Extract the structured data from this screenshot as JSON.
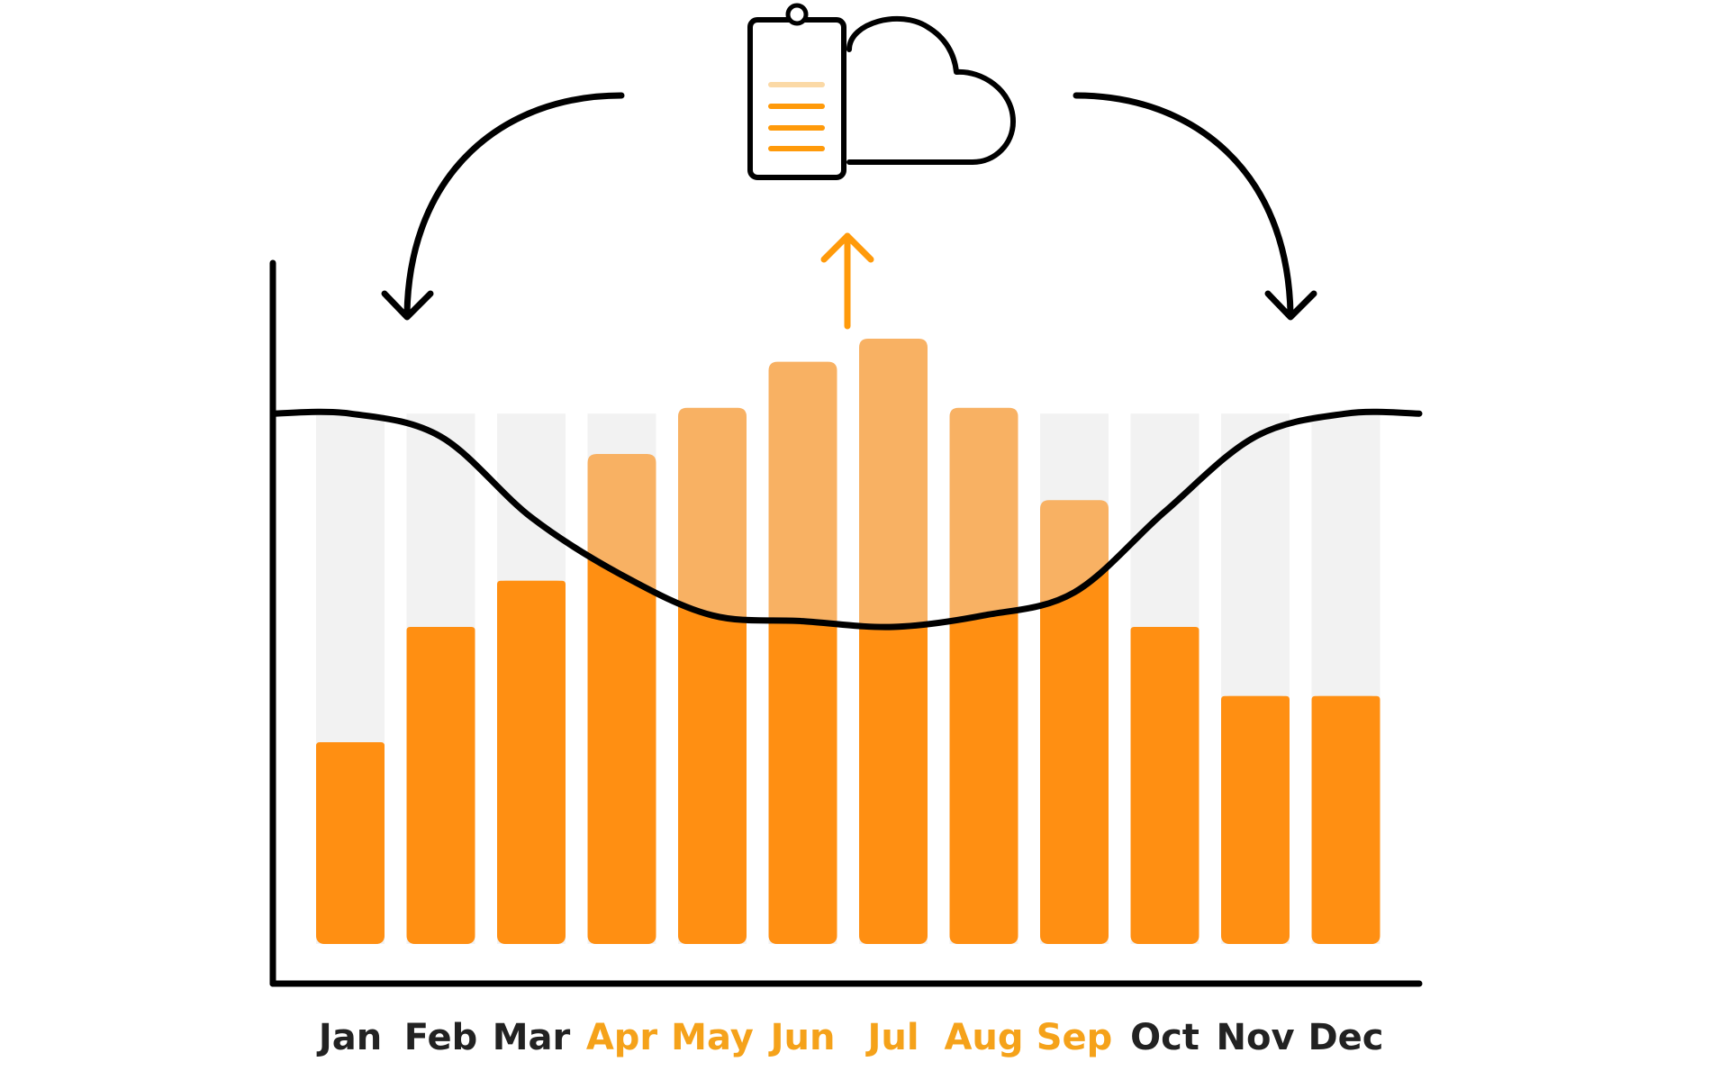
{
  "colors": {
    "bar_fill": "#ff8f12",
    "bar_highlight": "#f8b163",
    "bar_background": "#f2f2f2",
    "line": "#000000",
    "axis": "#000000",
    "accent": "#ff9a0a",
    "label_dark": "#222222",
    "label_accent": "#f5a21a",
    "clipboard_line_light": "#fbd9a6"
  },
  "icons": {
    "clipboard": "clipboard-icon",
    "cloud": "cloud-icon",
    "arrow_left": "curved-arrow-left-icon",
    "arrow_right": "curved-arrow-right-icon",
    "arrow_up": "arrow-up-icon"
  },
  "chart_data": {
    "type": "bar",
    "title": "",
    "xlabel": "",
    "ylabel": "",
    "ylim": [
      0,
      100
    ],
    "grid": false,
    "legend": "none",
    "categories": [
      "Jan",
      "Feb",
      "Mar",
      "Apr",
      "May",
      "Jun",
      "Jul",
      "Aug",
      "Sep",
      "Oct",
      "Nov",
      "Dec"
    ],
    "highlighted_categories": [
      "Apr",
      "May",
      "Jun",
      "Jul",
      "Aug",
      "Sep"
    ],
    "series": [
      {
        "type": "bar",
        "values": [
          35,
          55,
          63,
          85,
          93,
          101,
          105,
          93,
          77,
          55,
          43,
          43
        ]
      },
      {
        "type": "line",
        "values": [
          92,
          88,
          74,
          64,
          57,
          56,
          55,
          57,
          61,
          75,
          88,
          92
        ]
      }
    ]
  }
}
